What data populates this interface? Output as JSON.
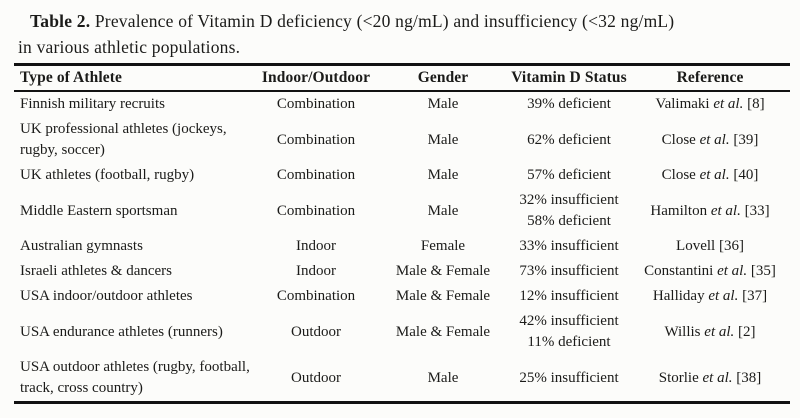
{
  "caption": {
    "label": "Table 2.",
    "line1": "Prevalence of Vitamin D deficiency (<20 ng/mL) and insufficiency (<32 ng/mL)",
    "line2": "in various athletic populations."
  },
  "table": {
    "headers": [
      "Type of Athlete",
      "Indoor/Outdoor",
      "Gender",
      "Vitamin D Status",
      "Reference"
    ],
    "rows": [
      {
        "athlete": "Finnish military recruits",
        "environment": "Combination",
        "gender": "Male",
        "status": "39% deficient",
        "ref_author": "Valimaki",
        "ref_etal": "et al.",
        "ref_num": "[8]"
      },
      {
        "athlete": "UK professional athletes (jockeys, rugby, soccer)",
        "environment": "Combination",
        "gender": "Male",
        "status": "62% deficient",
        "ref_author": "Close",
        "ref_etal": "et al.",
        "ref_num": "[39]"
      },
      {
        "athlete": "UK athletes (football, rugby)",
        "environment": "Combination",
        "gender": "Male",
        "status": "57% deficient",
        "ref_author": "Close",
        "ref_etal": "et al.",
        "ref_num": "[40]"
      },
      {
        "athlete": "Middle Eastern sportsman",
        "environment": "Combination",
        "gender": "Male",
        "status": "32% insufficient\n58% deficient",
        "ref_author": "Hamilton",
        "ref_etal": "et al.",
        "ref_num": "[33]"
      },
      {
        "athlete": "Australian gymnasts",
        "environment": "Indoor",
        "gender": "Female",
        "status": "33% insufficient",
        "ref_author": "Lovell",
        "ref_etal": "",
        "ref_num": "[36]"
      },
      {
        "athlete": "Israeli athletes & dancers",
        "environment": "Indoor",
        "gender": "Male & Female",
        "status": "73% insufficient",
        "ref_author": "Constantini",
        "ref_etal": "et al.",
        "ref_num": "[35]"
      },
      {
        "athlete": "USA indoor/outdoor athletes",
        "environment": "Combination",
        "gender": "Male & Female",
        "status": "12% insufficient",
        "ref_author": "Halliday",
        "ref_etal": "et al.",
        "ref_num": "[37]"
      },
      {
        "athlete": "USA endurance athletes (runners)",
        "environment": "Outdoor",
        "gender": "Male & Female",
        "status": "42% insufficient\n11% deficient",
        "ref_author": "Willis",
        "ref_etal": "et al.",
        "ref_num": "[2]"
      },
      {
        "athlete": "USA outdoor athletes (rugby, football, track, cross country)",
        "environment": "Outdoor",
        "gender": "Male",
        "status": "25% insufficient",
        "ref_author": "Storlie",
        "ref_etal": "et al.",
        "ref_num": "[38]"
      }
    ]
  },
  "colors": {
    "text": "#1b1b19",
    "rule": "#121212",
    "background": "#fcfcfa"
  }
}
